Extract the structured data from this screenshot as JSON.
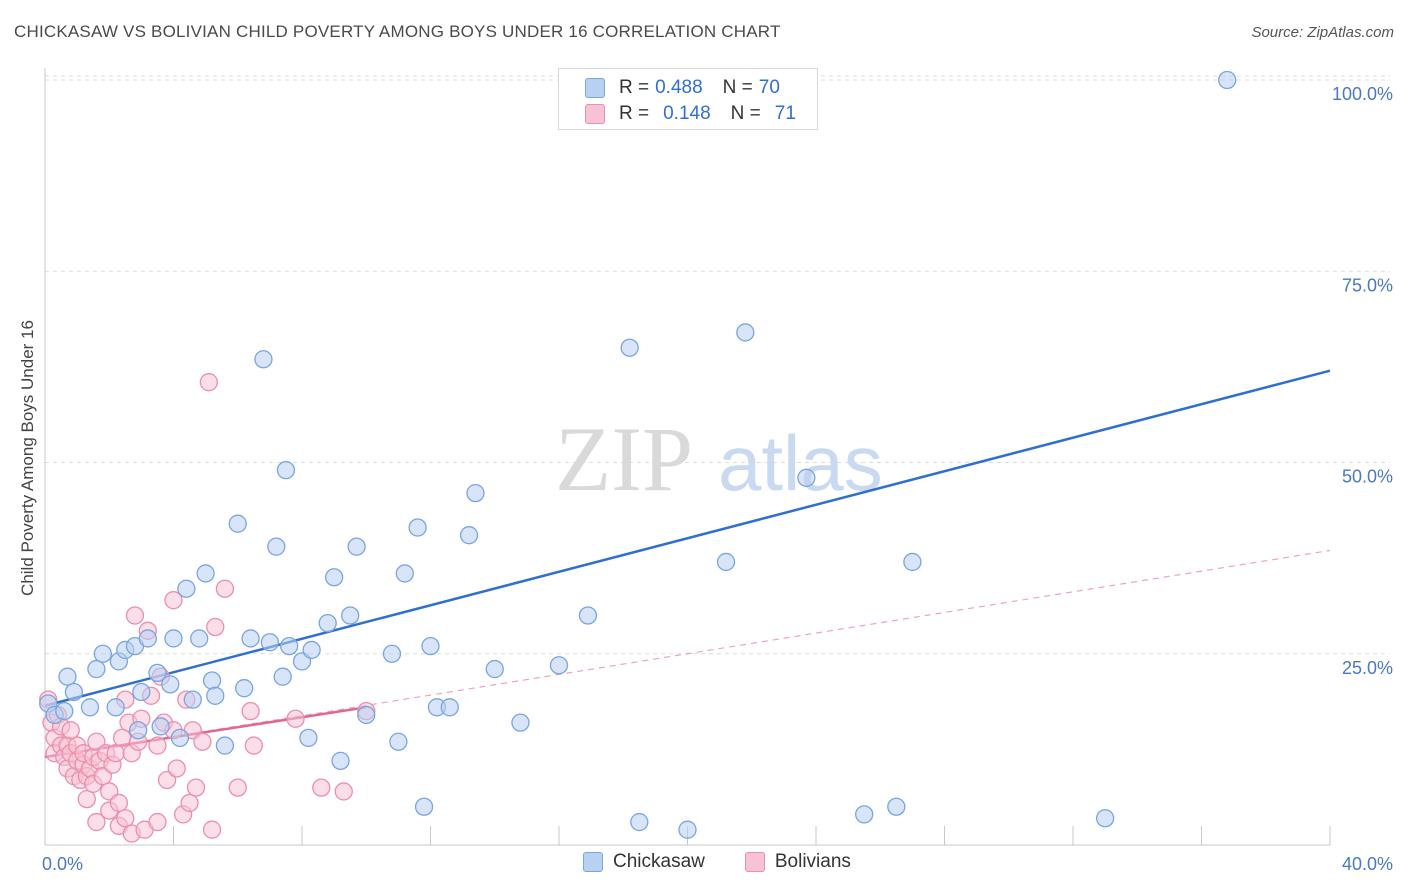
{
  "title": "CHICKASAW VS BOLIVIAN CHILD POVERTY AMONG BOYS UNDER 16 CORRELATION CHART",
  "source": "Source: ZipAtlas.com",
  "watermark": {
    "zip": "ZIP",
    "atlas": "atlas"
  },
  "legend": {
    "rows": [
      {
        "r_label": "R =",
        "r_value": "0.488",
        "n_label": "N =",
        "n_value": "70"
      },
      {
        "r_label": "R =",
        "r_value": "0.148",
        "n_label": "N =",
        "n_value": "71"
      }
    ]
  },
  "bottom_legend": [
    "Chickasaw",
    "Bolivians"
  ],
  "colors": {
    "chickasaw_fill": "#b8d0f2",
    "chickasaw_stroke": "#7aa5e0",
    "chickasaw_line": "#2f6fd0",
    "bolivians_fill": "#f7c3d4",
    "bolivians_stroke": "#ec8fad",
    "bolivians_line": "#e0678f",
    "grid": "#dcdcdc",
    "tick_text": "#4a78c2"
  },
  "chart_data": {
    "type": "scatter",
    "xlabel": "",
    "ylabel": "Child Poverty Among Boys Under 16",
    "xlim": [
      0,
      40
    ],
    "ylim": [
      0,
      100
    ],
    "x_ticks": [
      {
        "value": 0,
        "label": "0.0%"
      },
      {
        "value": 40,
        "label": "40.0%"
      }
    ],
    "y_ticks": [
      {
        "value": 25,
        "label": "25.0%"
      },
      {
        "value": 50,
        "label": "50.0%"
      },
      {
        "value": 75,
        "label": "75.0%"
      },
      {
        "value": 100,
        "label": "100.0%"
      }
    ],
    "grid": "horizontal-dashed",
    "legend_position": "top-center",
    "series": [
      {
        "name": "Chickasaw",
        "r": 0.488,
        "n": 70,
        "trend": {
          "x": [
            0,
            40
          ],
          "y": [
            18.2,
            62.0
          ],
          "style": "solid"
        },
        "points": [
          [
            0.1,
            18.5
          ],
          [
            0.3,
            17.0
          ],
          [
            0.6,
            17.5
          ],
          [
            0.7,
            22.0
          ],
          [
            0.9,
            20.0
          ],
          [
            1.4,
            18.0
          ],
          [
            1.6,
            23.0
          ],
          [
            1.8,
            25.0
          ],
          [
            2.2,
            18.0
          ],
          [
            2.3,
            24.0
          ],
          [
            2.5,
            25.5
          ],
          [
            2.8,
            26.0
          ],
          [
            2.9,
            15.0
          ],
          [
            3.0,
            20.0
          ],
          [
            3.2,
            27.0
          ],
          [
            3.5,
            22.5
          ],
          [
            3.6,
            15.5
          ],
          [
            3.9,
            21.0
          ],
          [
            4.0,
            27.0
          ],
          [
            4.2,
            14.0
          ],
          [
            4.4,
            33.5
          ],
          [
            4.6,
            19.0
          ],
          [
            4.8,
            27.0
          ],
          [
            5.0,
            35.5
          ],
          [
            5.2,
            21.5
          ],
          [
            5.3,
            19.5
          ],
          [
            5.6,
            13.0
          ],
          [
            6.0,
            42.0
          ],
          [
            6.2,
            20.5
          ],
          [
            6.4,
            27.0
          ],
          [
            6.8,
            63.5
          ],
          [
            7.0,
            26.5
          ],
          [
            7.2,
            39.0
          ],
          [
            7.4,
            22.0
          ],
          [
            7.5,
            49.0
          ],
          [
            7.6,
            26.0
          ],
          [
            8.0,
            24.0
          ],
          [
            8.2,
            14.0
          ],
          [
            8.3,
            25.5
          ],
          [
            8.8,
            29.0
          ],
          [
            9.0,
            35.0
          ],
          [
            9.2,
            11.0
          ],
          [
            9.5,
            30.0
          ],
          [
            9.7,
            39.0
          ],
          [
            10.0,
            17.0
          ],
          [
            10.8,
            25.0
          ],
          [
            11.0,
            13.5
          ],
          [
            11.2,
            35.5
          ],
          [
            11.6,
            41.5
          ],
          [
            11.8,
            5.0
          ],
          [
            12.0,
            26.0
          ],
          [
            12.2,
            18.0
          ],
          [
            12.6,
            18.0
          ],
          [
            13.2,
            40.5
          ],
          [
            13.4,
            46.0
          ],
          [
            14.0,
            23.0
          ],
          [
            14.8,
            16.0
          ],
          [
            16.0,
            23.5
          ],
          [
            16.9,
            30.0
          ],
          [
            18.2,
            65.0
          ],
          [
            18.5,
            3.0
          ],
          [
            20.0,
            2.0
          ],
          [
            21.2,
            37.0
          ],
          [
            21.8,
            67.0
          ],
          [
            23.7,
            48.0
          ],
          [
            25.5,
            4.0
          ],
          [
            26.5,
            5.0
          ],
          [
            27.0,
            37.0
          ],
          [
            33.0,
            3.5
          ],
          [
            36.8,
            100.0
          ]
        ]
      },
      {
        "name": "Bolivians",
        "r": 0.148,
        "n": 71,
        "trend": {
          "x": [
            0,
            10
          ],
          "y": [
            11.5,
            18.0
          ],
          "style": "solid"
        },
        "trend_extended": {
          "x": [
            0,
            40
          ],
          "y": [
            11.5,
            38.5
          ],
          "style": "dashed"
        },
        "points": [
          [
            0.1,
            19.0
          ],
          [
            0.2,
            16.0
          ],
          [
            0.3,
            14.0
          ],
          [
            0.3,
            12.0
          ],
          [
            0.4,
            17.0
          ],
          [
            0.5,
            13.0
          ],
          [
            0.5,
            15.5
          ],
          [
            0.6,
            11.5
          ],
          [
            0.7,
            13.0
          ],
          [
            0.7,
            10.0
          ],
          [
            0.8,
            15.0
          ],
          [
            0.8,
            12.0
          ],
          [
            0.9,
            9.0
          ],
          [
            1.0,
            11.0
          ],
          [
            1.0,
            13.0
          ],
          [
            1.1,
            8.5
          ],
          [
            1.2,
            10.5
          ],
          [
            1.2,
            12.0
          ],
          [
            1.3,
            9.0
          ],
          [
            1.3,
            6.0
          ],
          [
            1.4,
            10.0
          ],
          [
            1.5,
            11.5
          ],
          [
            1.5,
            8.0
          ],
          [
            1.6,
            13.5
          ],
          [
            1.6,
            3.0
          ],
          [
            1.7,
            11.0
          ],
          [
            1.8,
            9.0
          ],
          [
            1.9,
            12.0
          ],
          [
            2.0,
            7.0
          ],
          [
            2.0,
            4.5
          ],
          [
            2.1,
            10.5
          ],
          [
            2.2,
            12.0
          ],
          [
            2.3,
            2.5
          ],
          [
            2.3,
            5.5
          ],
          [
            2.4,
            14.0
          ],
          [
            2.5,
            19.0
          ],
          [
            2.5,
            3.5
          ],
          [
            2.6,
            16.0
          ],
          [
            2.7,
            12.0
          ],
          [
            2.7,
            1.5
          ],
          [
            2.8,
            30.0
          ],
          [
            2.9,
            13.5
          ],
          [
            3.0,
            16.5
          ],
          [
            3.1,
            2.0
          ],
          [
            3.2,
            28.0
          ],
          [
            3.3,
            19.5
          ],
          [
            3.5,
            13.0
          ],
          [
            3.5,
            3.0
          ],
          [
            3.6,
            22.0
          ],
          [
            3.7,
            16.0
          ],
          [
            3.8,
            8.5
          ],
          [
            4.0,
            32.0
          ],
          [
            4.0,
            15.0
          ],
          [
            4.1,
            10.0
          ],
          [
            4.3,
            4.0
          ],
          [
            4.4,
            19.0
          ],
          [
            4.5,
            5.5
          ],
          [
            4.6,
            15.0
          ],
          [
            4.7,
            7.5
          ],
          [
            4.9,
            13.5
          ],
          [
            5.1,
            60.5
          ],
          [
            5.2,
            2.0
          ],
          [
            5.3,
            28.5
          ],
          [
            5.6,
            33.5
          ],
          [
            6.0,
            7.5
          ],
          [
            6.4,
            17.5
          ],
          [
            6.5,
            13.0
          ],
          [
            7.8,
            16.5
          ],
          [
            8.6,
            7.5
          ],
          [
            9.3,
            7.0
          ],
          [
            10.0,
            17.5
          ]
        ]
      }
    ]
  }
}
